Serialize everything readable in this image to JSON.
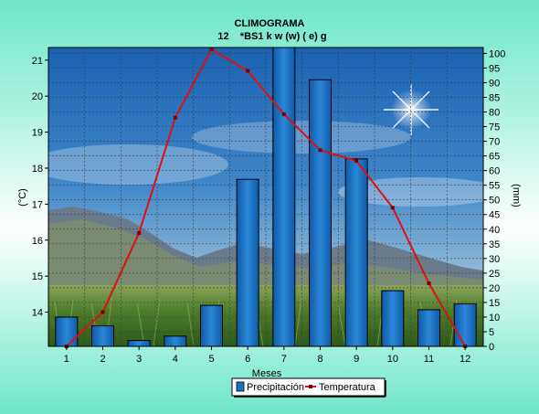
{
  "chart_data": {
    "type": "bar",
    "title": "CLIMOGRAMA",
    "subtitle": "12    *BS1 k w (w) ( e) g",
    "xlabel": "Meses",
    "ylabel_left": "(°C)",
    "ylabel_right": "(mm)",
    "categories": [
      "1",
      "2",
      "3",
      "4",
      "5",
      "6",
      "7",
      "8",
      "9",
      "10",
      "11",
      "12"
    ],
    "ylim_left": [
      13.05,
      21.35
    ],
    "yticks_left": [
      14,
      15,
      16,
      17,
      18,
      19,
      20,
      21
    ],
    "ylim_right": [
      0,
      102
    ],
    "yticks_right": [
      0,
      5,
      10,
      15,
      20,
      25,
      30,
      35,
      40,
      45,
      50,
      55,
      60,
      65,
      70,
      75,
      80,
      85,
      90,
      95,
      100
    ],
    "grid": true,
    "legend_position": "bottom-center",
    "series": [
      {
        "name": "Precipitación",
        "kind": "bar",
        "axis": "right",
        "color": "#1e6fc0",
        "values": [
          10,
          7,
          2,
          3.5,
          14,
          57,
          103,
          91,
          64,
          19,
          12.5,
          14.5
        ]
      },
      {
        "name": "Temperatura",
        "kind": "line",
        "axis": "left",
        "color": "#e01010",
        "values": [
          13.05,
          14.0,
          16.2,
          19.4,
          21.3,
          20.7,
          19.5,
          18.5,
          18.2,
          16.9,
          14.8,
          13.05
        ]
      }
    ]
  }
}
